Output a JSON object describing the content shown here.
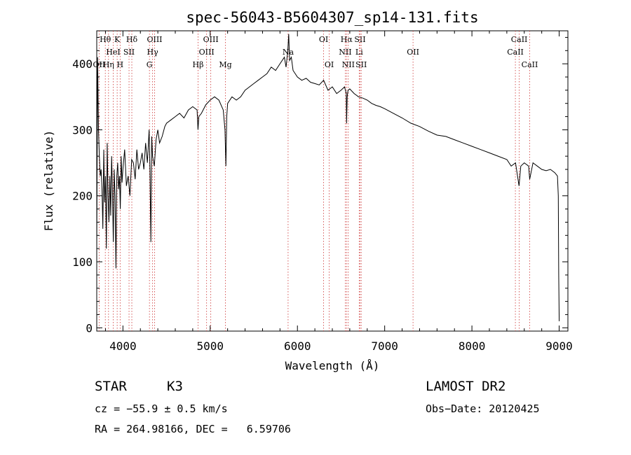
{
  "chart_data": {
    "type": "line",
    "title": "spec-56043-B5604307_sp14-131.fits",
    "xlabel": "Wavelength (Å)",
    "ylabel": "Flux (relative)",
    "xlim": [
      3700,
      9100
    ],
    "ylim": [
      -5,
      450
    ],
    "xticks": [
      4000,
      5000,
      6000,
      7000,
      8000,
      9000
    ],
    "yticks": [
      0,
      100,
      200,
      300,
      400
    ],
    "grid": false,
    "series": [
      {
        "color": "#000000",
        "x": [
          3700,
          3710,
          3720,
          3730,
          3740,
          3750,
          3760,
          3770,
          3780,
          3790,
          3800,
          3810,
          3820,
          3830,
          3840,
          3850,
          3860,
          3870,
          3880,
          3890,
          3900,
          3910,
          3920,
          3930,
          3940,
          3950,
          3960,
          3970,
          3980,
          3990,
          4000,
          4020,
          4040,
          4060,
          4080,
          4100,
          4120,
          4140,
          4160,
          4180,
          4200,
          4220,
          4240,
          4260,
          4280,
          4300,
          4310,
          4320,
          4330,
          4340,
          4360,
          4380,
          4400,
          4420,
          4450,
          4480,
          4500,
          4550,
          4600,
          4650,
          4700,
          4750,
          4800,
          4850,
          4860,
          4870,
          4900,
          4950,
          5000,
          5050,
          5100,
          5150,
          5170,
          5180,
          5190,
          5200,
          5250,
          5300,
          5350,
          5400,
          5450,
          5500,
          5550,
          5600,
          5650,
          5700,
          5750,
          5800,
          5850,
          5870,
          5890,
          5900,
          5910,
          5930,
          5950,
          6000,
          6050,
          6100,
          6150,
          6200,
          6250,
          6300,
          6350,
          6400,
          6450,
          6500,
          6540,
          6560,
          6563,
          6570,
          6580,
          6600,
          6650,
          6700,
          6750,
          6800,
          6850,
          6900,
          6950,
          7000,
          7100,
          7200,
          7300,
          7400,
          7500,
          7600,
          7700,
          7800,
          7900,
          8000,
          8100,
          8200,
          8300,
          8400,
          8450,
          8500,
          8540,
          8560,
          8600,
          8650,
          8662,
          8700,
          8750,
          8800,
          8850,
          8900,
          8950,
          8980,
          8990,
          8995,
          9000
        ],
        "y": [
          120,
          410,
          300,
          260,
          230,
          240,
          210,
          150,
          270,
          190,
          230,
          120,
          280,
          200,
          160,
          230,
          170,
          260,
          210,
          130,
          240,
          200,
          90,
          230,
          250,
          210,
          230,
          180,
          260,
          220,
          240,
          270,
          215,
          230,
          200,
          255,
          250,
          225,
          270,
          240,
          250,
          265,
          240,
          280,
          250,
          300,
          240,
          130,
          290,
          260,
          245,
          285,
          300,
          280,
          290,
          305,
          310,
          315,
          320,
          325,
          318,
          330,
          335,
          330,
          300,
          320,
          325,
          338,
          345,
          350,
          345,
          330,
          300,
          245,
          320,
          340,
          350,
          345,
          350,
          360,
          365,
          370,
          375,
          380,
          385,
          395,
          390,
          400,
          410,
          395,
          420,
          445,
          405,
          410,
          390,
          380,
          375,
          378,
          372,
          370,
          368,
          375,
          360,
          365,
          355,
          360,
          365,
          355,
          310,
          350,
          360,
          362,
          355,
          350,
          348,
          345,
          340,
          337,
          335,
          332,
          325,
          318,
          310,
          305,
          298,
          292,
          290,
          285,
          280,
          275,
          270,
          265,
          260,
          255,
          245,
          250,
          215,
          245,
          250,
          245,
          225,
          250,
          245,
          240,
          238,
          240,
          235,
          230,
          200,
          80,
          10
        ]
      }
    ],
    "line_markers": [
      {
        "label": "Hθ",
        "wl": 3798,
        "row": 0
      },
      {
        "label": "K",
        "wl": 3934,
        "row": 0
      },
      {
        "label": "Hδ",
        "wl": 4102,
        "row": 0
      },
      {
        "label": "OIII",
        "wl": 4363,
        "row": 0
      },
      {
        "label": "OIII",
        "wl": 5007,
        "row": 0
      },
      {
        "label": "OI",
        "wl": 6300,
        "row": 0
      },
      {
        "label": "Hα",
        "wl": 6563,
        "row": 0
      },
      {
        "label": "SII",
        "wl": 6717,
        "row": 0
      },
      {
        "label": "CaII",
        "wl": 8542,
        "row": 0
      },
      {
        "label": "HeI",
        "wl": 3889,
        "row": 1
      },
      {
        "label": "SII",
        "wl": 4070,
        "row": 1
      },
      {
        "label": "Hγ",
        "wl": 4340,
        "row": 1
      },
      {
        "label": "OIII",
        "wl": 4959,
        "row": 1
      },
      {
        "label": "Na",
        "wl": 5893,
        "row": 1
      },
      {
        "label": "NII",
        "wl": 6548,
        "row": 1
      },
      {
        "label": "Li",
        "wl": 6708,
        "row": 1
      },
      {
        "label": "OII",
        "wl": 7325,
        "row": 1
      },
      {
        "label": "CaII",
        "wl": 8498,
        "row": 1
      },
      {
        "label": "OII",
        "wl": 3727,
        "row": 2
      },
      {
        "label": "Hη",
        "wl": 3835,
        "row": 2
      },
      {
        "label": "H",
        "wl": 3968,
        "row": 2
      },
      {
        "label": "G",
        "wl": 4304,
        "row": 2
      },
      {
        "label": "Hβ",
        "wl": 4861,
        "row": 2
      },
      {
        "label": "Mg",
        "wl": 5175,
        "row": 2
      },
      {
        "label": "OI",
        "wl": 6364,
        "row": 2
      },
      {
        "label": "NII",
        "wl": 6583,
        "row": 2
      },
      {
        "label": "SII",
        "wl": 6731,
        "row": 2
      },
      {
        "label": "CaII",
        "wl": 8662,
        "row": 2
      }
    ]
  },
  "info": {
    "object_class": "STAR",
    "subclass": "K3",
    "survey": "LAMOST DR2",
    "cz": "cz = −55.9 ± 0.5 km/s",
    "obs_date": "Obs−Date: 20120425",
    "coords": "RA = 264.98166, DEC =   6.59706"
  }
}
